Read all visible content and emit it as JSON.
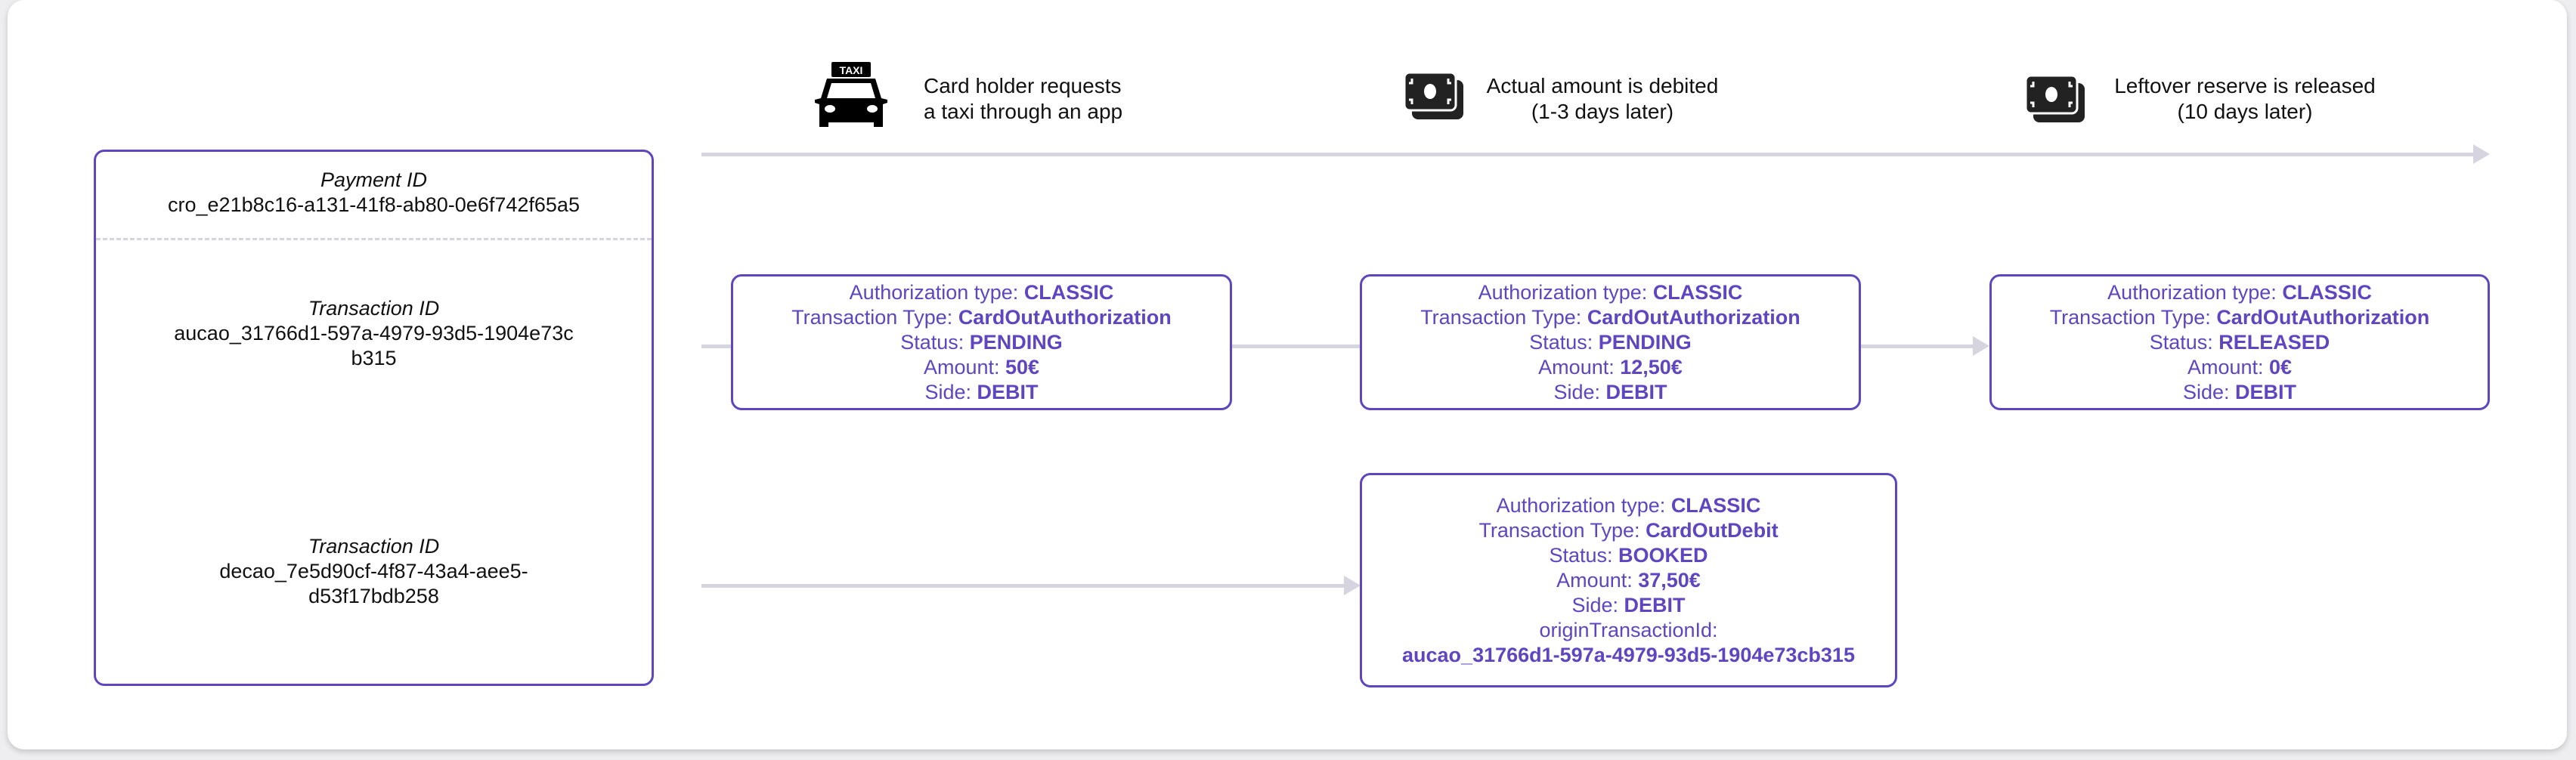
{
  "colors": {
    "accent": "#5f45c0",
    "connector": "#d6d4df",
    "text": "#111111"
  },
  "timeline": {
    "steps": [
      {
        "icon": "taxi-icon",
        "icon_label": "TAXI",
        "line1": "Card holder requests",
        "line2": "a taxi through an app"
      },
      {
        "icon": "money-icon",
        "line1": "Actual amount is debited",
        "line2": "(1-3 days later)"
      },
      {
        "icon": "money-icon",
        "line1": "Leftover reserve is released",
        "line2": "(10 days later)"
      }
    ]
  },
  "ids": {
    "payment_label": "Payment ID",
    "payment_id": "cro_e21b8c16-a131-41f8-ab80-0e6f742f65a5",
    "transactions": [
      {
        "label": "Transaction ID",
        "line1": "aucao_31766d1-597a-4979-93d5-1904e73c",
        "line2": "b315"
      },
      {
        "label": "Transaction ID",
        "line1": "decao_7e5d90cf-4f87-43a4-aee5-",
        "line2": "d53f17bdb258"
      }
    ]
  },
  "boxes": [
    {
      "rows": [
        [
          "Authorization type: ",
          "CLASSIC"
        ],
        [
          "Transaction Type: ",
          "CardOutAuthorization"
        ],
        [
          "Status: ",
          "PENDING"
        ],
        [
          "Amount: ",
          "50€"
        ],
        [
          "Side: ",
          "DEBIT"
        ]
      ]
    },
    {
      "rows": [
        [
          "Authorization type: ",
          "CLASSIC"
        ],
        [
          "Transaction Type: ",
          "CardOutAuthorization"
        ],
        [
          "Status: ",
          "PENDING"
        ],
        [
          "Amount: ",
          "12,50€"
        ],
        [
          "Side: ",
          "DEBIT"
        ]
      ]
    },
    {
      "rows": [
        [
          "Authorization type: ",
          "CLASSIC"
        ],
        [
          "Transaction Type: ",
          "CardOutAuthorization"
        ],
        [
          "Status: ",
          "RELEASED"
        ],
        [
          "Amount: ",
          "0€"
        ],
        [
          "Side: ",
          "DEBIT"
        ]
      ]
    },
    {
      "rows": [
        [
          "Authorization type: ",
          "CLASSIC"
        ],
        [
          "Transaction Type: ",
          "CardOutDebit"
        ],
        [
          "Status: ",
          "BOOKED"
        ],
        [
          "Amount: ",
          "37,50€"
        ],
        [
          "Side: ",
          "DEBIT"
        ],
        [
          "originTransactionId:",
          ""
        ],
        [
          "",
          "aucao_31766d1-597a-4979-93d5-1904e73cb315"
        ]
      ]
    }
  ]
}
